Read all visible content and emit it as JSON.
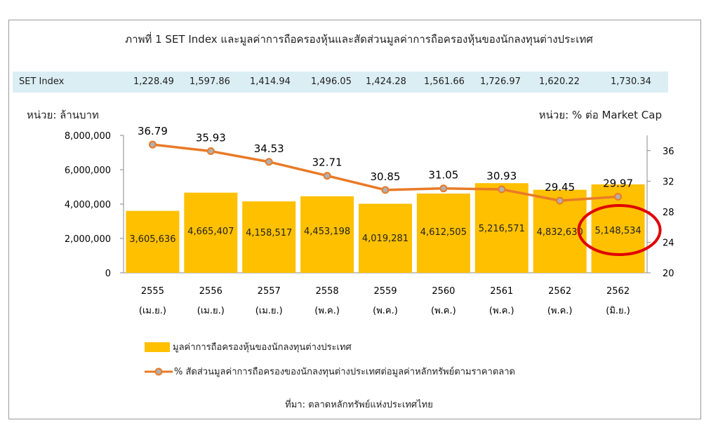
{
  "title": "ภาพที่ 1 SET Index และมูลค่าการถือครองหุ้นและสัดส่วนมูลค่าการถือครองหุ้นของนักลงทุนต่างประเทศ",
  "set_index": {
    "label": "SET Index",
    "values": [
      "1,228.49",
      "1,597.86",
      "1,414.94",
      "1,496.05",
      "1,424.28",
      "1,561.66",
      "1,726.97",
      "1,620.22",
      "1,730.34"
    ]
  },
  "unit_left": "หน่วย: ล้านบาท",
  "unit_right": "หน่วย: % ต่อ Market Cap",
  "legend": {
    "bars": "มูลค่าการถือครองหุ้นของนักลงทุนต่างประเทศ",
    "line": "% สัดส่วนมูลค่าการถือครองของนักลงทุนต่างประเทศต่อมูลค่าหลักทรัพย์ตามราคาตลาด"
  },
  "source": "ที่มา: ตลาดหลักทรัพย์แห่งประเทศไทย",
  "colors": {
    "bar": "#ffc000",
    "line": "#e97a27",
    "marker": "#b0b0b0",
    "highlight": "#e00000",
    "set_row_bg": "#dbeef4"
  },
  "chart_data": {
    "type": "bar",
    "categories": [
      "2555",
      "2556",
      "2557",
      "2558",
      "2559",
      "2560",
      "2561",
      "2562",
      "2562"
    ],
    "sub_categories": [
      "(เม.ย.)",
      "(เม.ย.)",
      "(เม.ย.)",
      "(พ.ค.)",
      "(พ.ค.)",
      "(พ.ค.)",
      "(พ.ค.)",
      "(พ.ค.)",
      "(มิ.ย.)"
    ],
    "series": [
      {
        "type": "bar",
        "axis": "left",
        "values": [
          3605636,
          4665407,
          4158517,
          4453198,
          4019281,
          4612505,
          5216571,
          4832630,
          5148534
        ],
        "labels": [
          "3,605,636",
          "4,665,407",
          "4,158,517",
          "4,453,198",
          "4,019,281",
          "4,612,505",
          "5,216,571",
          "4,832,630",
          "5,148,534"
        ]
      },
      {
        "type": "line",
        "axis": "right",
        "values": [
          36.79,
          35.93,
          34.53,
          32.71,
          30.85,
          31.05,
          30.93,
          29.45,
          29.97
        ],
        "labels": [
          "36.79",
          "35.93",
          "34.53",
          "32.71",
          "30.85",
          "31.05",
          "30.93",
          "29.45",
          "29.97"
        ]
      }
    ],
    "ylim_left": [
      0,
      8000000
    ],
    "yticks_left": [
      "0",
      "2,000,000",
      "4,000,000",
      "6,000,000",
      "8,000,000"
    ],
    "ylim_right": [
      20,
      38
    ],
    "yticks_right": [
      "20",
      "24",
      "28",
      "32",
      "36"
    ],
    "highlight_index": 8,
    "grid": false
  }
}
